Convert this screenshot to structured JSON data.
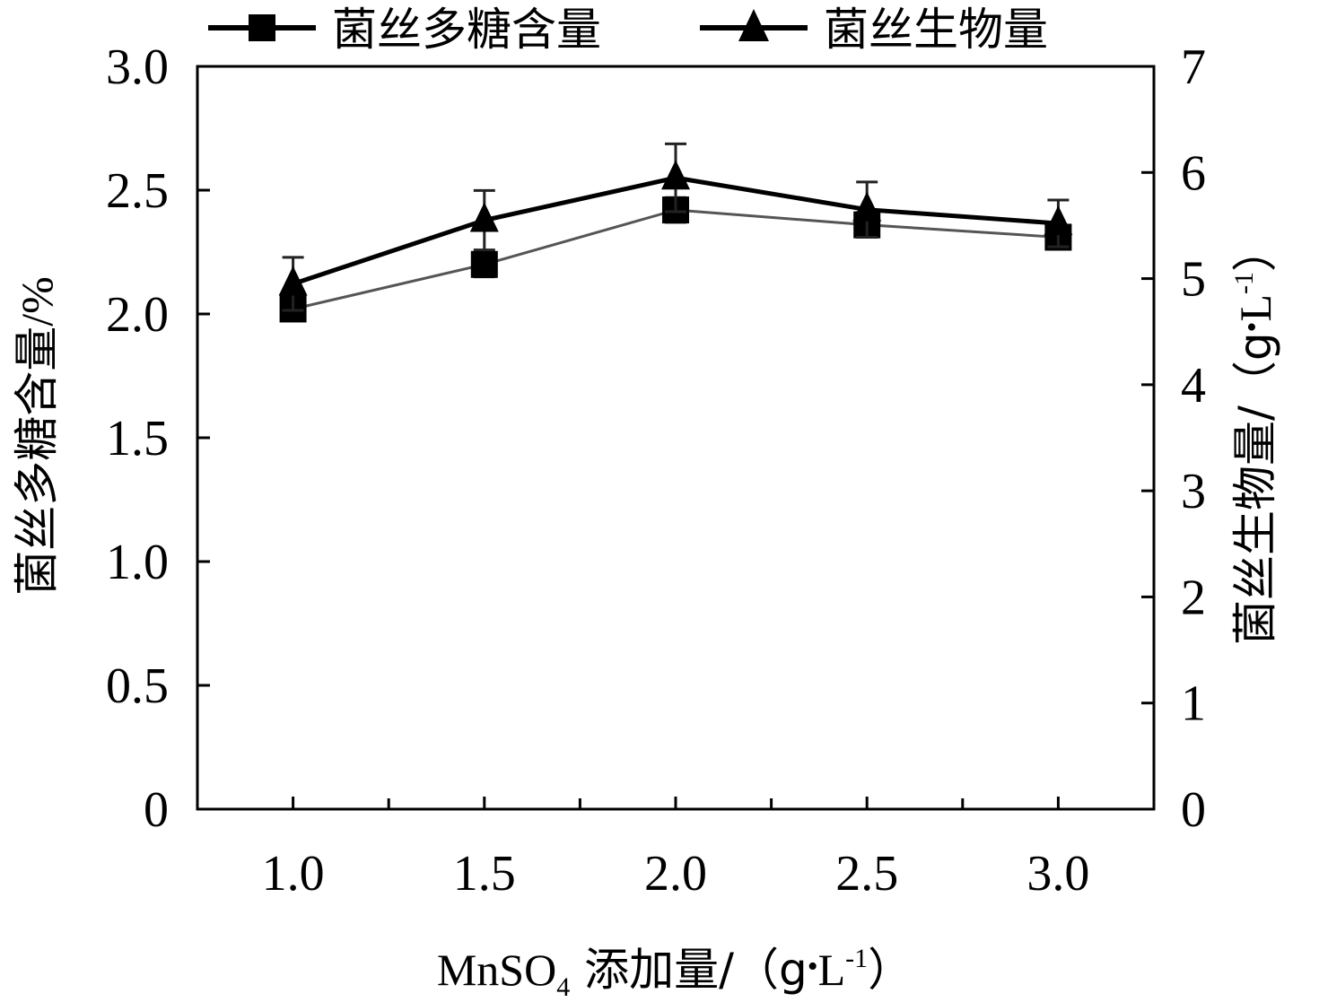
{
  "chart_data": {
    "type": "line",
    "categories": [
      "1.0",
      "1.5",
      "2.0",
      "2.5",
      "3.0"
    ],
    "x": [
      1.0,
      1.5,
      2.0,
      2.5,
      3.0
    ],
    "xlabel": {
      "prefix": "MnSO",
      "subscript": "4",
      "text": " 添加量/（g",
      "dot": "•",
      "unit": "L",
      "superscript": "-1",
      "close": "）"
    },
    "ylabel_left": "菌丝多糖含量/%",
    "ylabel_right": {
      "text": "菌丝生物量/（g",
      "dot": "•",
      "unit": "L",
      "superscript": "-1",
      "close": "）"
    },
    "ylim_left": [
      0,
      3.0
    ],
    "ylim_right": [
      0,
      7
    ],
    "yticks_left": [
      "0",
      "0.5",
      "1.0",
      "1.5",
      "2.0",
      "2.5",
      "3.0"
    ],
    "yticks_left_values": [
      0,
      0.5,
      1.0,
      1.5,
      2.0,
      2.5,
      3.0
    ],
    "yticks_right": [
      "0",
      "1",
      "2",
      "3",
      "4",
      "5",
      "6",
      "7"
    ],
    "yticks_right_values": [
      0,
      1,
      2,
      3,
      4,
      5,
      6,
      7
    ],
    "grid": false,
    "legend_position": "top",
    "series": [
      {
        "name": "菌丝多糖含量",
        "axis": "left",
        "marker": "square",
        "values": [
          2.02,
          2.2,
          2.42,
          2.36,
          2.31
        ],
        "errors": [
          0.04,
          0.05,
          0.05,
          0.05,
          0.04
        ]
      },
      {
        "name": "菌丝生物量",
        "axis": "right",
        "marker": "triangle",
        "values": [
          4.95,
          5.55,
          5.95,
          5.65,
          5.52
        ],
        "errors": [
          0.25,
          0.28,
          0.32,
          0.26,
          0.22
        ]
      }
    ]
  }
}
